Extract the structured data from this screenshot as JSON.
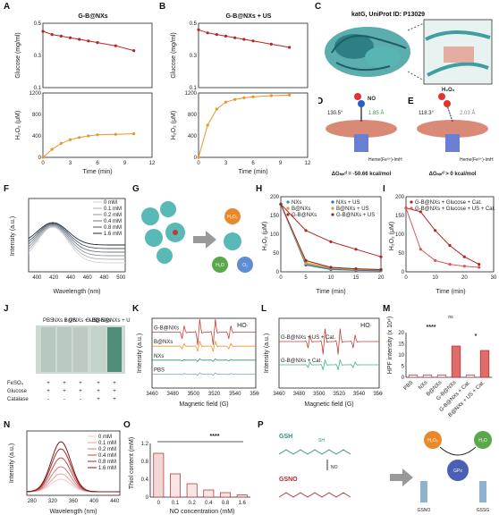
{
  "labels": {
    "A": "A",
    "B": "B",
    "C": "C",
    "D": "D",
    "E": "E",
    "F": "F",
    "G": "G",
    "H": "H",
    "I": "I",
    "J": "J",
    "K": "K",
    "L": "L",
    "M": "M",
    "N": "N",
    "O": "O",
    "P": "P"
  },
  "panelA": {
    "title": "G-B@NXs",
    "y_top": "Glucose (mg/ml)",
    "y_bot": "H₂O₂ (μM)",
    "xlabel": "Time (min)"
  },
  "panelB": {
    "title": "G-B@NXs + US",
    "y_top": "Glucose (mg/ml)",
    "y_bot": "H₂O₂ (μM)",
    "xlabel": "Time (min)"
  },
  "panelC": {
    "title": "katG, UniProt ID: P13029"
  },
  "panelD": {
    "ligand": "NO",
    "angle": "130.5°",
    "dist": "1.85 Å",
    "heme": "Heme(Fe³⁺)-ImH",
    "dg": "ΔGₕᵢₙᵈ = -50.66 kcal/mol"
  },
  "panelE": {
    "ligand": "H₂O₂",
    "angle": "118.3°",
    "dist": "2.03 Å",
    "heme": "Heme(Fe³⁺)-ImH",
    "dg": "ΔGₕᵢₙᵈ > 0 kcal/mol"
  },
  "panelF": {
    "ylabel": "Intensity (a.u.)",
    "xlabel": "Wavelength (nm)",
    "legend": [
      "0 mM",
      "0.1 mM",
      "0.2 mM",
      "0.4 mM",
      "0.8 mM",
      "1.6 mM"
    ]
  },
  "panelG": {
    "h2o2": "H₂O₂",
    "h2o": "H₂O",
    "o2": "O₂"
  },
  "panelH": {
    "ylabel": "H₂O₂ (μM)",
    "xlabel": "Time (min)",
    "legend": [
      "NXs",
      "B@NXs",
      "G-B@NXs",
      "NXs + US",
      "B@NXs + US",
      "G-B@NXs + US"
    ]
  },
  "panelI": {
    "ylabel": "H₂O₂ (μM)",
    "xlabel": "Time (min)",
    "legend": [
      "G-B@NXs + Glucose + Cat.",
      "G-B@NXs + Glucose + US + Cat."
    ]
  },
  "panelJ": {
    "cols": [
      "PBS",
      "NXs + US",
      "B@NXs + US",
      "G-B@NXs",
      "G-B@NXs + US"
    ],
    "rows": [
      {
        "name": "FeSO₄",
        "vals": [
          "+",
          "+",
          "+",
          "+",
          "+"
        ]
      },
      {
        "name": "Glucose",
        "vals": [
          "+",
          "+",
          "+",
          "+",
          "+"
        ]
      },
      {
        "name": "Catalase",
        "vals": [
          "-",
          "-",
          "-",
          "+",
          "+"
        ]
      }
    ]
  },
  "panelK": {
    "tag": "HO·",
    "ylabel": "Intensity (a.u.)",
    "xlabel": "Magnetic field (G)",
    "traces": [
      "G-B@NXs",
      "B@NXs",
      "NXs",
      "PBS"
    ]
  },
  "panelL": {
    "tag": "HO·",
    "ylabel": "Intensity (a.u.)",
    "xlabel": "Magnetic field (G)",
    "traces": [
      "G-B@NXs + US + Cat.",
      "G-B@NXs + Cat."
    ]
  },
  "panelM": {
    "ylabel": "HPF intensity (x 10⁴)",
    "ns": "ns",
    "stars": "****",
    "star1": "*",
    "cats": [
      "PBS",
      "NXs",
      "B@NXs",
      "G-B@NXs",
      "G-B@NXs + Cat.",
      "G-B@NXs + US + Cat."
    ]
  },
  "panelN": {
    "ylabel": "Intensity (a.u.)",
    "xlabel": "Wavelength (nm)",
    "legend": [
      "0 mM",
      "0.1 mM",
      "0.2 mM",
      "0.4 mM",
      "0.8 mM",
      "1.6 mM"
    ]
  },
  "panelO": {
    "ylabel": "Thiol content (mM)",
    "xlabel": "NO concentration (mM)",
    "stars": "****"
  },
  "panelP": {
    "gsh": "GSH",
    "gsno": "GSNO",
    "no": "NO",
    "sh": "SH",
    "h2o2": "H₂O₂",
    "h2o": "H₂O",
    "gpx": "GPx",
    "gsno2": "GSNO",
    "gssg": "GSSG"
  },
  "chart_data": [
    {
      "type": "line",
      "panel": "A-top",
      "ylabel": "Glucose (mg/ml)",
      "ylim": [
        0.1,
        0.5
      ],
      "x": [
        0,
        1,
        2,
        3,
        4,
        5,
        6,
        8,
        10
      ],
      "series": [
        {
          "values": [
            0.45,
            0.43,
            0.42,
            0.41,
            0.4,
            0.39,
            0.38,
            0.36,
            0.33
          ]
        }
      ]
    },
    {
      "type": "line",
      "panel": "A-bottom",
      "ylabel": "H₂O₂ (μM)",
      "xlabel": "Time (min)",
      "ylim": [
        0,
        1200
      ],
      "xlim": [
        0,
        12
      ],
      "x": [
        0,
        1,
        2,
        3,
        4,
        5,
        6,
        8,
        10
      ],
      "series": [
        {
          "values": [
            0,
            150,
            260,
            330,
            370,
            400,
            420,
            430,
            440
          ]
        }
      ]
    },
    {
      "type": "line",
      "panel": "B-top",
      "ylabel": "Glucose (mg/ml)",
      "ylim": [
        0.1,
        0.5
      ],
      "x": [
        0,
        1,
        2,
        3,
        4,
        5,
        6,
        8,
        10
      ],
      "series": [
        {
          "values": [
            0.46,
            0.44,
            0.43,
            0.42,
            0.41,
            0.4,
            0.39,
            0.37,
            0.35
          ]
        }
      ]
    },
    {
      "type": "line",
      "panel": "B-bottom",
      "ylabel": "H₂O₂ (μM)",
      "xlabel": "Time (min)",
      "ylim": [
        0,
        1200
      ],
      "xlim": [
        0,
        12
      ],
      "x": [
        0,
        1,
        2,
        3,
        4,
        5,
        6,
        8,
        10
      ],
      "series": [
        {
          "values": [
            0,
            600,
            900,
            1030,
            1080,
            1110,
            1130,
            1150,
            1160
          ]
        }
      ]
    },
    {
      "type": "line",
      "panel": "H",
      "ylabel": "H₂O₂ (μM)",
      "xlabel": "Time (min)",
      "ylim": [
        0,
        200
      ],
      "xlim": [
        0,
        20
      ],
      "x": [
        0,
        5,
        10,
        15,
        20
      ],
      "series": [
        {
          "name": "NXs",
          "values": [
            180,
            20,
            8,
            5,
            5
          ]
        },
        {
          "name": "B@NXs",
          "values": [
            180,
            25,
            10,
            8,
            6
          ]
        },
        {
          "name": "G-B@NXs",
          "values": [
            180,
            110,
            80,
            60,
            40
          ]
        },
        {
          "name": "NXs + US",
          "values": [
            180,
            18,
            6,
            4,
            3
          ]
        },
        {
          "name": "B@NXs + US",
          "values": [
            180,
            22,
            9,
            6,
            5
          ]
        },
        {
          "name": "G-B@NXs + US",
          "values": [
            180,
            30,
            12,
            8,
            6
          ]
        }
      ]
    },
    {
      "type": "line",
      "panel": "I",
      "ylabel": "H₂O₂ (μM)",
      "xlabel": "Time (min)",
      "ylim": [
        0,
        200
      ],
      "xlim": [
        0,
        30
      ],
      "x": [
        0,
        5,
        10,
        15,
        20,
        25
      ],
      "series": [
        {
          "name": "G-B@NXs + Glucose + Cat.",
          "values": [
            170,
            160,
            110,
            70,
            40,
            20
          ]
        },
        {
          "name": "G-B@NXs + Glucose + US + Cat.",
          "values": [
            170,
            60,
            30,
            20,
            15,
            12
          ]
        }
      ]
    },
    {
      "type": "bar",
      "panel": "M",
      "ylabel": "HPF intensity (x 10⁴)",
      "ylim": [
        0,
        20
      ],
      "categories": [
        "PBS",
        "NXs",
        "B@NXs",
        "G-B@NXs",
        "G-B@NXs + Cat.",
        "G-B@NXs + US + Cat."
      ],
      "values": [
        1,
        1,
        1,
        14,
        1,
        12
      ]
    },
    {
      "type": "bar",
      "panel": "O",
      "ylabel": "Thiol content (mM)",
      "xlabel": "NO concentration (mM)",
      "ylim": [
        0,
        1.2
      ],
      "categories": [
        "0",
        "0.1",
        "0.2",
        "0.4",
        "0.8",
        "1.6"
      ],
      "values": [
        0.98,
        0.52,
        0.3,
        0.16,
        0.1,
        0.05
      ]
    }
  ]
}
